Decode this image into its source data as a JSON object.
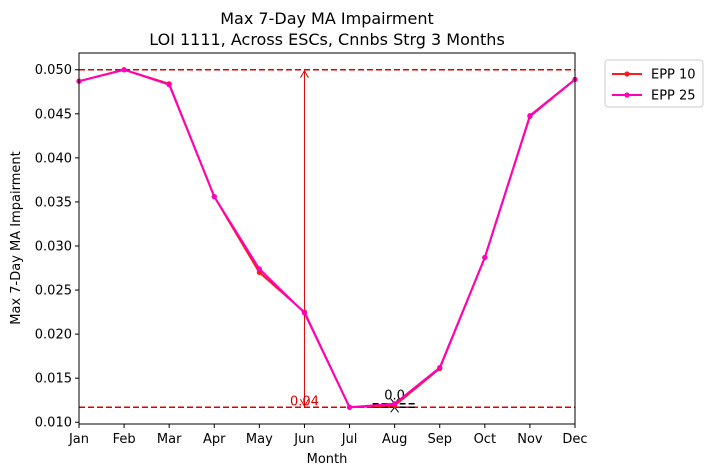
{
  "chart_data": {
    "type": "line",
    "title": "Max 7-Day MA Impairment",
    "subtitle": "LOI 1111, Across ESCs, Cnnbs Strg 3 Months",
    "xlabel": "Month",
    "ylabel": "Max 7-Day MA Impairment",
    "categories": [
      "Jan",
      "Feb",
      "Mar",
      "Apr",
      "May",
      "Jun",
      "Jul",
      "Aug",
      "Sep",
      "Oct",
      "Nov",
      "Dec"
    ],
    "ylim": [
      0.0098,
      0.0519
    ],
    "yticks": [
      "0.010",
      "0.015",
      "0.020",
      "0.025",
      "0.030",
      "0.035",
      "0.040",
      "0.045",
      "0.050"
    ],
    "grid": false,
    "legend_position": "outside-top-right",
    "series": [
      {
        "name": "EPP 10",
        "color": "#ff1a1a",
        "values": [
          0.0487,
          0.05,
          0.0484,
          0.0356,
          0.027,
          0.0225,
          0.0117,
          0.0119,
          0.0161,
          0.0287,
          0.0447,
          0.0489
        ]
      },
      {
        "name": "EPP 25",
        "color": "#ff00bb",
        "values": [
          0.0487,
          0.05,
          0.0483,
          0.0356,
          0.0274,
          0.0224,
          0.0117,
          0.0121,
          0.0162,
          0.0287,
          0.0448,
          0.0489
        ]
      }
    ],
    "reference_lines": [
      {
        "y": 0.05,
        "color": "#dd0000",
        "style": "dashed"
      },
      {
        "y": 0.0117,
        "color": "#dd0000",
        "style": "dashed"
      }
    ],
    "annotations": [
      {
        "text": "0.04",
        "color": "#dd0000",
        "type": "range-arrow",
        "x": "Jun",
        "y_from": 0.0117,
        "y_to": 0.05
      },
      {
        "text": "0.0",
        "color": "#000000",
        "type": "range-arrow",
        "x": "Aug",
        "y_from": 0.0117,
        "y_to": 0.0121
      }
    ]
  }
}
